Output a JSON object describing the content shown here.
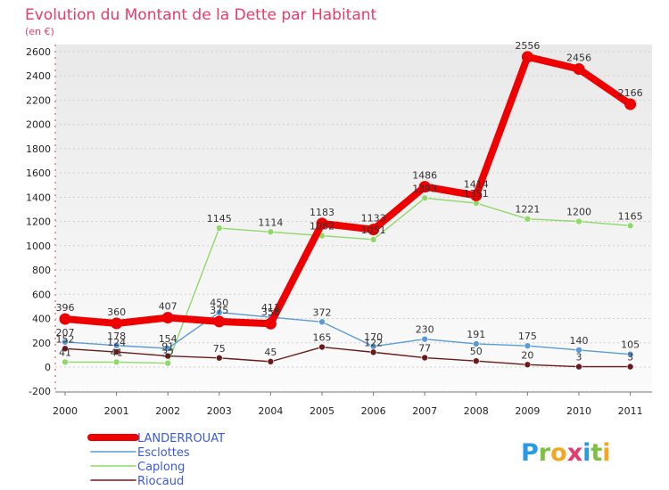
{
  "chart_data": {
    "type": "line",
    "title": "Evolution du Montant de la Dette par Habitant",
    "subtitle": "(en €)",
    "xlabel": "",
    "ylabel": "",
    "categories": [
      "2000",
      "2001",
      "2002",
      "2003",
      "2004",
      "2005",
      "2006",
      "2007",
      "2008",
      "2009",
      "2010",
      "2011"
    ],
    "ylim": [
      -200,
      2600
    ],
    "yticks": [
      -200,
      0,
      200,
      400,
      600,
      800,
      1000,
      1200,
      1400,
      1600,
      1800,
      2000,
      2200,
      2400,
      2600
    ],
    "grid": "horizontal dashed",
    "legend_position": "bottom-left",
    "series": [
      {
        "name": "LANDERROUAT",
        "color": "#ee0000",
        "values": [
          396,
          360,
          407,
          375,
          358,
          1183,
          1133,
          1486,
          1414,
          2556,
          2456,
          2166
        ]
      },
      {
        "name": "Esclottes",
        "color": "#5b9bd5",
        "values": [
          207,
          178,
          154,
          450,
          411,
          372,
          170,
          230,
          191,
          175,
          140,
          105
        ]
      },
      {
        "name": "Caplong",
        "color": "#90d86a",
        "values": [
          41,
          41,
          32,
          1145,
          1114,
          1082,
          1051,
          1393,
          1351,
          1221,
          1200,
          1165
        ]
      },
      {
        "name": "Riocaud",
        "color": "#6b1a1a",
        "values": [
          152,
          124,
          91,
          75,
          45,
          165,
          122,
          77,
          50,
          20,
          3,
          3
        ]
      }
    ]
  },
  "brand": {
    "letters": [
      "P",
      "r",
      "o",
      "x",
      "i",
      "t",
      "i"
    ],
    "colors": [
      "#2a9be0",
      "#7dc243",
      "#f5a623",
      "#e83a6b",
      "#2a9be0",
      "#7dc243",
      "#f5a623"
    ]
  }
}
